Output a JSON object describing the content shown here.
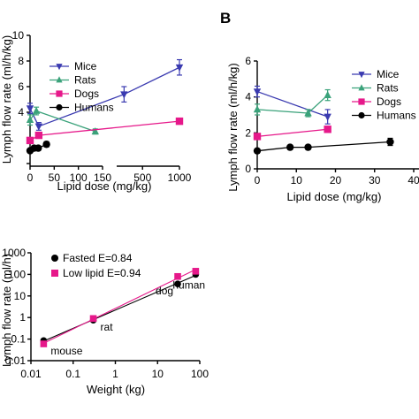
{
  "chart_data": [
    {
      "panel": "A",
      "type": "line",
      "panel_letter": "",
      "xlabel": "Lipid dose (mg/kg)",
      "ylabel": "Lymph flow rate (ml/h/kg)",
      "broken_x_axis": true,
      "segments": [
        {
          "xlim": [
            0,
            150
          ],
          "ticks": [
            0,
            50,
            100,
            150
          ]
        },
        {
          "xlim": [
            150,
            1000
          ],
          "ticks": [
            500,
            1000
          ]
        }
      ],
      "ylim": [
        0,
        10
      ],
      "legend_position": "top-right",
      "series": [
        {
          "name": "Mice",
          "color": "#3a3ab0",
          "marker": "triangle-down",
          "x": [
            0,
            18,
            250,
            1000
          ],
          "y": [
            4.3,
            2.9,
            5.4,
            7.5
          ],
          "err": [
            0.4,
            0.3,
            0.6,
            0.6
          ]
        },
        {
          "name": "Rats",
          "color": "#3aa27a",
          "marker": "triangle-up",
          "x": [
            0,
            13,
            135
          ],
          "y": [
            3.4,
            4.1,
            2.5
          ],
          "err": [
            0.4,
            0.3,
            0.2
          ]
        },
        {
          "name": "Dogs",
          "color": "#e6188a",
          "marker": "square",
          "x": [
            0,
            18,
            1000
          ],
          "y": [
            1.8,
            2.2,
            3.3
          ],
          "err": [
            0.2,
            0.2,
            0.1
          ]
        },
        {
          "name": "Humans",
          "color": "#000000",
          "marker": "circle",
          "x": [
            0,
            8.4,
            17,
            34
          ],
          "y": [
            1.0,
            1.2,
            1.2,
            1.5
          ],
          "err": [
            0.1,
            0.1,
            0.1,
            0.2
          ]
        }
      ]
    },
    {
      "panel": "B",
      "type": "line",
      "panel_letter": "B",
      "xlabel": "Lipid dose (mg/kg)",
      "ylabel": "Lymph flow rate (ml/h/kg)",
      "xlim": [
        0,
        40
      ],
      "xticks": [
        0,
        10,
        20,
        30,
        40
      ],
      "ylim": [
        0,
        6
      ],
      "yticks": [
        0,
        2,
        4,
        6
      ],
      "legend_position": "top-right",
      "series": [
        {
          "name": "Mice",
          "color": "#3a3ab0",
          "marker": "triangle-down",
          "x": [
            0,
            18
          ],
          "y": [
            4.3,
            2.9
          ],
          "err": [
            0.3,
            0.4
          ]
        },
        {
          "name": "Rats",
          "color": "#3aa27a",
          "marker": "triangle-up",
          "x": [
            0,
            13,
            18
          ],
          "y": [
            3.3,
            3.1,
            4.1
          ],
          "err": [
            0.3,
            0.2,
            0.3
          ]
        },
        {
          "name": "Dogs",
          "color": "#e6188a",
          "marker": "square",
          "x": [
            0,
            18
          ],
          "y": [
            1.8,
            2.2
          ],
          "err": [
            0.1,
            0.1
          ]
        },
        {
          "name": "Humans",
          "color": "#000000",
          "marker": "circle",
          "x": [
            0,
            8.4,
            13,
            34
          ],
          "y": [
            1.0,
            1.2,
            1.2,
            1.5
          ],
          "err": [
            0.05,
            0.05,
            0.05,
            0.2
          ]
        }
      ]
    },
    {
      "panel": "C",
      "type": "scatter",
      "panel_letter": "",
      "xlabel": "Weight (kg)",
      "ylabel": "Lymph flow rate (ml/h)",
      "x_scale": "log",
      "y_scale": "log",
      "xlim": [
        0.01,
        100
      ],
      "xticks": [
        "0.01",
        "0.1",
        "1",
        "10",
        "100"
      ],
      "ylim": [
        0.01,
        1000
      ],
      "yticks": [
        "0.01",
        "0.1",
        "1",
        "10",
        "100",
        "1000"
      ],
      "legend_position": "top-left",
      "series": [
        {
          "name": "Fasted E=0.84",
          "color": "#000000",
          "marker": "circle",
          "x": [
            0.02,
            0.3,
            30,
            80
          ],
          "y": [
            0.085,
            0.75,
            36,
            100
          ]
        },
        {
          "name": "Low lipid E=0.94",
          "color": "#e6188a",
          "marker": "square",
          "x": [
            0.02,
            0.3,
            30,
            80
          ],
          "y": [
            0.06,
            0.9,
            80,
            140
          ]
        }
      ],
      "annotations": [
        {
          "text": "mouse",
          "x": 0.02,
          "y": 0.06
        },
        {
          "text": "rat",
          "x": 0.3,
          "y": 0.75
        },
        {
          "text": "dog",
          "x": 30,
          "y": 36
        },
        {
          "text": "human",
          "x": 80,
          "y": 100
        }
      ]
    }
  ]
}
